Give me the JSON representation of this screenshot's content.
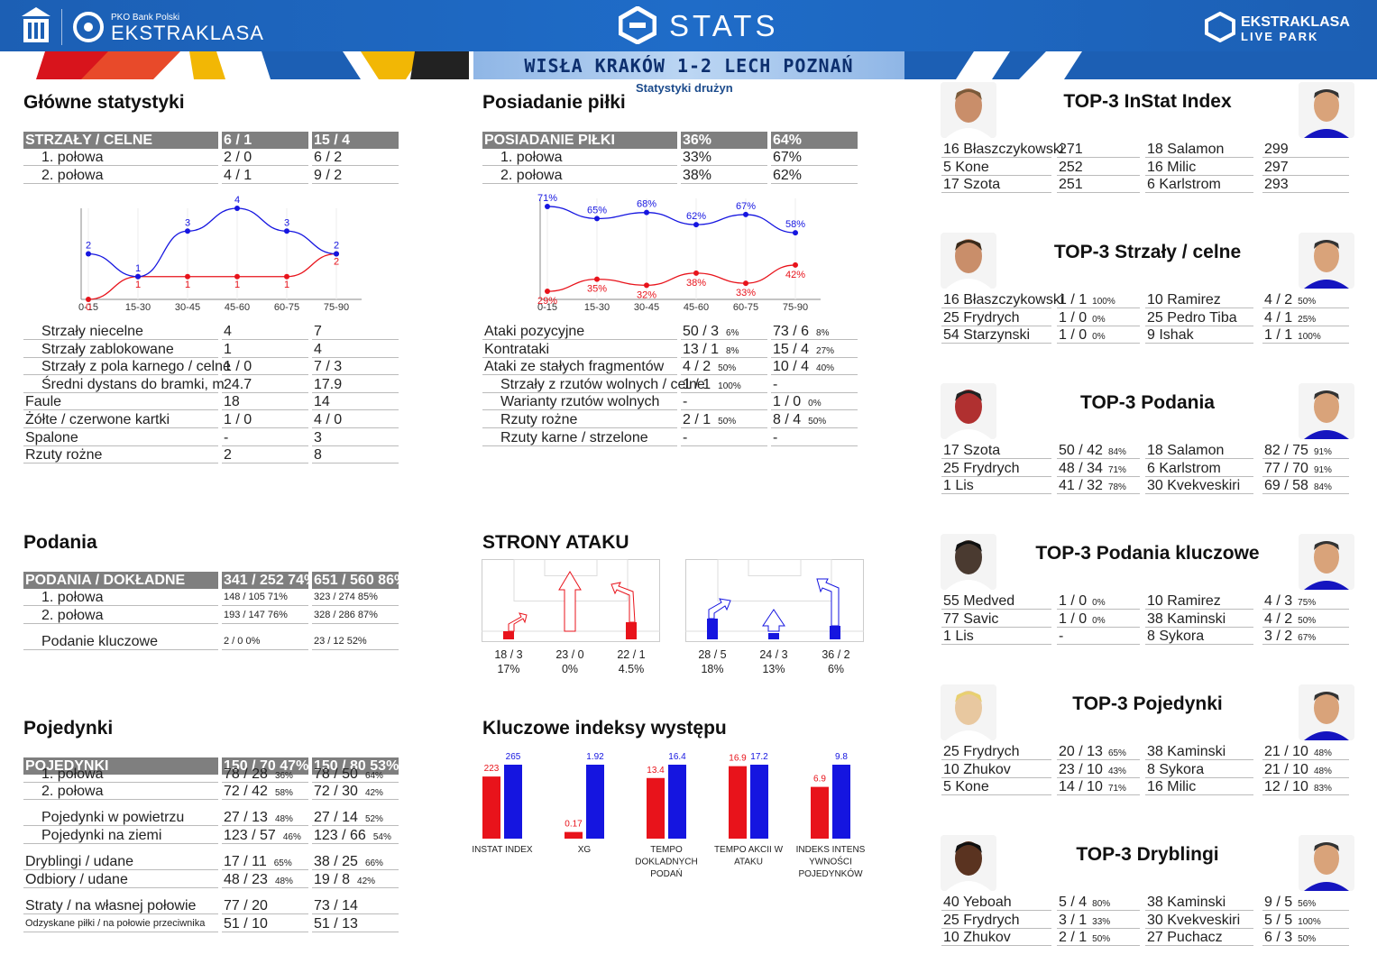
{
  "header": {
    "pko": "PKO Bank Polski",
    "league": "EKSTRAKLASA",
    "stats": "STATS",
    "live1": "EKSTRAKLASA",
    "live2": "LIVE PARK",
    "score": "WISŁA KRAKÓW 1-2  LECH POZNAŃ",
    "subtitle": "Statystyki drużyn"
  },
  "colors": {
    "home": "#e8131b",
    "away": "#1515e0",
    "header": "#1c5fb4",
    "table_header": "#7f7f7f"
  },
  "main": {
    "title": "Główne statystyki",
    "header": [
      "STRZAŁY / CELNE",
      "6 / 1",
      "15 / 4"
    ],
    "halves": [
      [
        "1. połowa",
        "2 / 0",
        "6 / 2"
      ],
      [
        "2. połowa",
        "4 / 1",
        "9 / 2"
      ]
    ],
    "rows": [
      [
        "Strzały niecelne",
        "4",
        "7",
        1
      ],
      [
        "Strzały zablokowane",
        "1",
        "4",
        1
      ],
      [
        "Strzały z pola karnego / celne",
        "1 / 0",
        "7 / 3",
        1
      ],
      [
        "Średni dystans do bramki, m",
        "24.7",
        "17.9",
        1
      ],
      [
        "Faule",
        "18",
        "14",
        0
      ],
      [
        "Żółte / czerwone kartki",
        "1 / 0",
        "4 / 0",
        0
      ],
      [
        "Spalone",
        "-",
        "3",
        0
      ],
      [
        "Rzuty rożne",
        "2",
        "8",
        0
      ]
    ]
  },
  "shots_chart": {
    "type": "line",
    "x": [
      "0-15",
      "15-30",
      "30-45",
      "45-60",
      "60-75",
      "75-90"
    ],
    "home": [
      0,
      1,
      1,
      1,
      1,
      2
    ],
    "away": [
      2,
      1,
      3,
      4,
      3,
      2
    ]
  },
  "possession": {
    "title": "Posiadanie piłki",
    "header": [
      "POSIADANIE PIŁKI",
      "36%",
      "64%"
    ],
    "halves": [
      [
        "1. połowa",
        "33%",
        "67%"
      ],
      [
        "2. połowa",
        "38%",
        "62%"
      ]
    ],
    "rows": [
      [
        "Ataki pozycyjne",
        "50 / 3",
        "6%",
        "73 / 6",
        "8%",
        0
      ],
      [
        "Kontrataki",
        "13 / 1",
        "8%",
        "15 / 4",
        "27%",
        0
      ],
      [
        "Ataki ze stałych fragmentów",
        "4 / 2",
        "50%",
        "10 / 4",
        "40%",
        0
      ],
      [
        "Strzały z rzutów wolnych / celne",
        "1 / 1",
        "100%",
        "-",
        "",
        1
      ],
      [
        "Warianty rzutów wolnych",
        "-",
        "",
        "1 / 0",
        "0%",
        1
      ],
      [
        "Rzuty rożne",
        "2 / 1",
        "50%",
        "8 / 4",
        "50%",
        1
      ],
      [
        "Rzuty karne / strzelone",
        "-",
        "",
        "-",
        "",
        1
      ]
    ]
  },
  "possession_chart": {
    "type": "line",
    "x": [
      "0-15",
      "15-30",
      "30-45",
      "45-60",
      "60-75",
      "75-90"
    ],
    "home": [
      "29%",
      "35%",
      "32%",
      "38%",
      "33%",
      "42%"
    ],
    "away": [
      "71%",
      "65%",
      "68%",
      "62%",
      "67%",
      "58%"
    ],
    "home_v": [
      29,
      35,
      32,
      38,
      33,
      42
    ],
    "away_v": [
      71,
      65,
      68,
      62,
      67,
      58
    ]
  },
  "passes": {
    "title": "Podania",
    "header": [
      "PODANIA / DOKŁADNE",
      "341 / 252 74%",
      "651 / 560 86%"
    ],
    "rows": [
      [
        "1. połowa",
        "148 / 105 71%",
        "323 / 274 85%",
        1
      ],
      [
        "2. połowa",
        "193 / 147 76%",
        "328 / 286 87%",
        1
      ],
      [
        "Podanie kluczowe",
        "2 / 0       0%",
        "23 / 12     52%",
        1
      ]
    ]
  },
  "duels": {
    "title": "Pojedynki",
    "header": [
      "POJEDYNKI",
      "150 / 70 47%",
      "150 / 80 53%"
    ],
    "rows": [
      [
        "1. połowa",
        "78 / 28",
        "36%",
        "78 / 50",
        "64%",
        1,
        849
      ],
      [
        "2. połowa",
        "72 / 42",
        "58%",
        "72 / 30",
        "42%",
        1,
        868
      ],
      [
        "Pojedynki w powietrzu",
        "27 / 13",
        "48%",
        "27 / 14",
        "52%",
        1,
        897
      ],
      [
        "Pojedynki na ziemi",
        "123 / 57",
        "46%",
        "123 / 66",
        "54%",
        1,
        917
      ],
      [
        "Dryblingi / udane",
        "17 / 11",
        "65%",
        "38 / 25",
        "66%",
        0,
        946
      ],
      [
        "Odbiory / udane",
        "48 / 23",
        "48%",
        "19 / 8",
        "42%",
        0,
        966
      ],
      [
        "Straty / na własnej połowie",
        "77 / 20",
        "",
        "73 / 14",
        "",
        0,
        995
      ],
      [
        "Odzyskane piłki / na połowie przeciwnika",
        "51 / 10",
        "",
        "51 / 13",
        "",
        0,
        1015
      ]
    ]
  },
  "attack": {
    "title": "STRONY ATAKU",
    "home": [
      [
        "18 / 3",
        "17%"
      ],
      [
        "23 / 0",
        "0%"
      ],
      [
        "22 / 1",
        "4.5%"
      ]
    ],
    "away": [
      [
        "28 / 5",
        "18%"
      ],
      [
        "24 / 3",
        "13%"
      ],
      [
        "36 / 2",
        "6%"
      ]
    ]
  },
  "kpi": {
    "title": "Kluczowe indeksy występu",
    "items": [
      {
        "label": [
          "INSTAT INDEX"
        ],
        "home": "223",
        "away": "265",
        "h": 0.84,
        "a": 1.0
      },
      {
        "label": [
          "XG"
        ],
        "home": "0.17",
        "away": "1.92",
        "h": 0.09,
        "a": 1.0
      },
      {
        "label": [
          "TEMPO",
          "DOKLADNYCH",
          "PODAŃ"
        ],
        "home": "13.4",
        "away": "16.4",
        "h": 0.82,
        "a": 1.0
      },
      {
        "label": [
          "TEMPO AKCII W",
          "ATAKU"
        ],
        "home": "16.9",
        "away": "17.2",
        "h": 0.98,
        "a": 1.0
      },
      {
        "label": [
          "INDEKS INTENS",
          "YWNOŚCI",
          "POJEDYNKÓW"
        ],
        "home": "6.9",
        "away": "9.8",
        "h": 0.7,
        "a": 1.0
      }
    ]
  },
  "tops": [
    {
      "title": "TOP-3 InStat Index",
      "rows": [
        [
          "16 Błaszczykowski",
          "271",
          "",
          "18 Salamon",
          "299",
          ""
        ],
        [
          "5  Kone",
          "252",
          "",
          "16 Milic",
          "297",
          ""
        ],
        [
          "17 Szota",
          "251",
          "",
          "6  Karlstrom",
          "293",
          ""
        ]
      ]
    },
    {
      "title": "TOP-3 Strzały / celne",
      "rows": [
        [
          "16 Błaszczykowski",
          "1 / 1",
          "100%",
          "10 Ramirez",
          "4 / 2",
          "50%"
        ],
        [
          "25 Frydrych",
          "1 / 0",
          "0%",
          "25 Pedro Tiba",
          "4 / 1",
          "25%"
        ],
        [
          "54 Starzynski",
          "1 / 0",
          "0%",
          "9  Ishak",
          "1 / 1",
          "100%"
        ]
      ]
    },
    {
      "title": "TOP-3 Podania",
      "rows": [
        [
          "17 Szota",
          "50 / 42",
          "84%",
          "18 Salamon",
          "82 / 75",
          "91%"
        ],
        [
          "25 Frydrych",
          "48 / 34",
          "71%",
          "6  Karlstrom",
          "77 / 70",
          "91%"
        ],
        [
          "1  Lis",
          "41 / 32",
          "78%",
          "30 Kvekveskiri",
          "69 / 58",
          "84%"
        ]
      ]
    },
    {
      "title": "TOP-3 Podania kluczowe",
      "rows": [
        [
          "55 Medved",
          "1 / 0",
          "0%",
          "10 Ramirez",
          "4 / 3",
          "75%"
        ],
        [
          "77 Savic",
          "1 / 0",
          "0%",
          "38 Kaminski",
          "4 / 2",
          "50%"
        ],
        [
          "1  Lis",
          "-",
          "",
          "8  Sykora",
          "3 / 2",
          "67%"
        ]
      ]
    },
    {
      "title": "TOP-3 Pojedynki",
      "rows": [
        [
          "25 Frydrych",
          "20 / 13",
          "65%",
          "38 Kaminski",
          "21 / 10",
          "48%"
        ],
        [
          "10 Zhukov",
          "23 / 10",
          "43%",
          "8  Sykora",
          "21 / 10",
          "48%"
        ],
        [
          "5  Kone",
          "14 / 10",
          "71%",
          "16 Milic",
          "12 / 10",
          "83%"
        ]
      ]
    },
    {
      "title": "TOP-3 Dryblingi",
      "rows": [
        [
          "40 Yeboah",
          "5 / 4",
          "80%",
          "38 Kaminski",
          "9 / 5",
          "56%"
        ],
        [
          "25 Frydrych",
          "3 / 1",
          "33%",
          "30 Kvekveskiri",
          "5 / 5",
          "100%"
        ],
        [
          "10 Zhukov",
          "2 / 1",
          "50%",
          "27 Puchacz",
          "6 / 3",
          "50%"
        ]
      ]
    }
  ]
}
